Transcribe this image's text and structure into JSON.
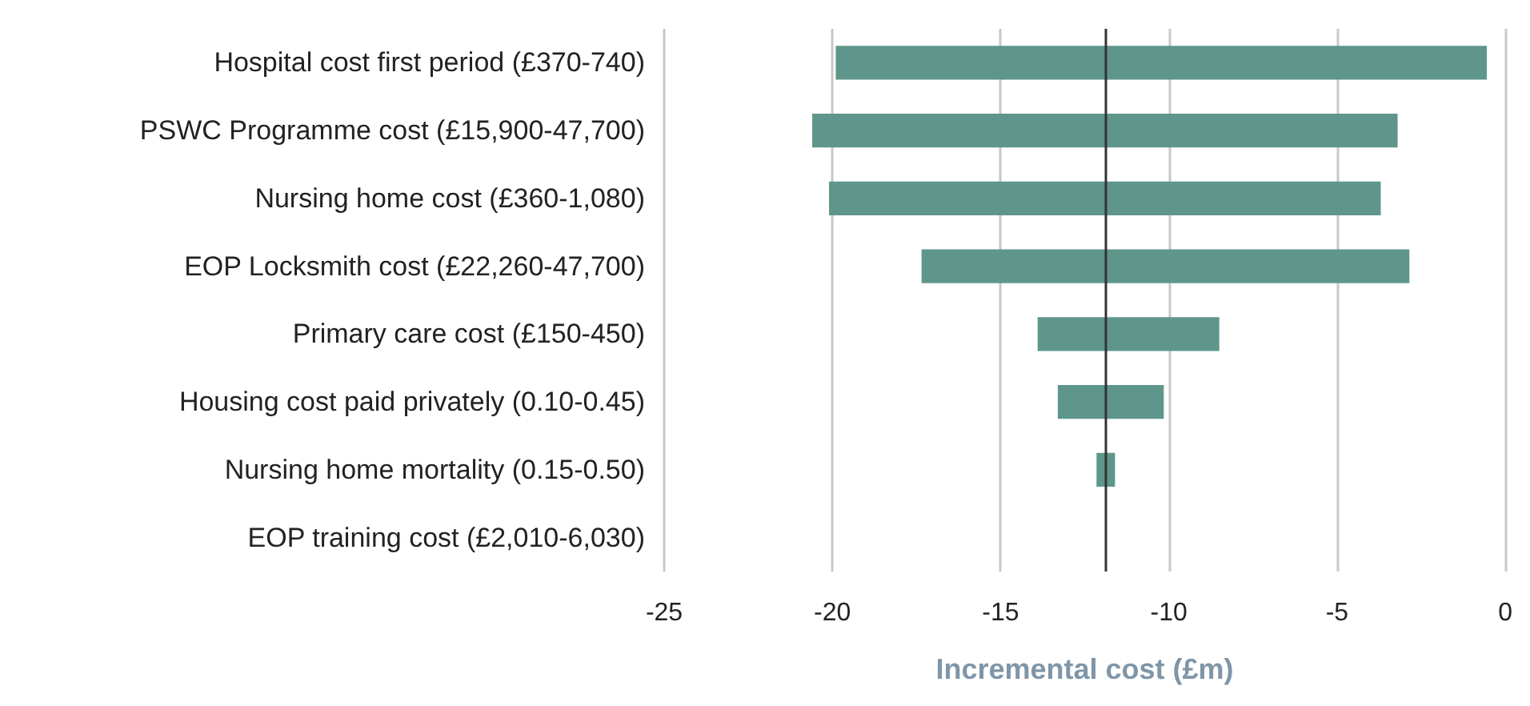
{
  "chart_data": {
    "type": "bar",
    "orientation": "horizontal",
    "xlabel": "Incremental cost (£m)",
    "categories": [
      "Hospital cost first period (£370-740)",
      "PSWC Programme cost (£15,900-47,700)",
      "Nursing home cost (£360-1,080)",
      "EOP Locksmith cost (£22,260-47,700)",
      "Primary care cost (£150-450)",
      "Housing cost paid privately (0.10-0.45)",
      "Nursing home mortality (0.15-0.50)",
      "EOP training cost (£2,010-6,030)"
    ],
    "base": [
      -19.9,
      -20.6,
      -20.1,
      -17.35,
      -13.9,
      -13.3,
      -12.15,
      null
    ],
    "values": [
      19.35,
      17.4,
      16.4,
      14.5,
      5.4,
      3.15,
      0.55,
      null
    ],
    "color": "#5f968b",
    "xlim": [
      -25,
      0
    ],
    "xticks": [
      -25,
      -20,
      -15,
      -10,
      -5,
      0
    ],
    "grid": "x",
    "ref_lines": [
      {
        "axis": "x",
        "value": -11.9,
        "color": "#333333"
      }
    ]
  }
}
